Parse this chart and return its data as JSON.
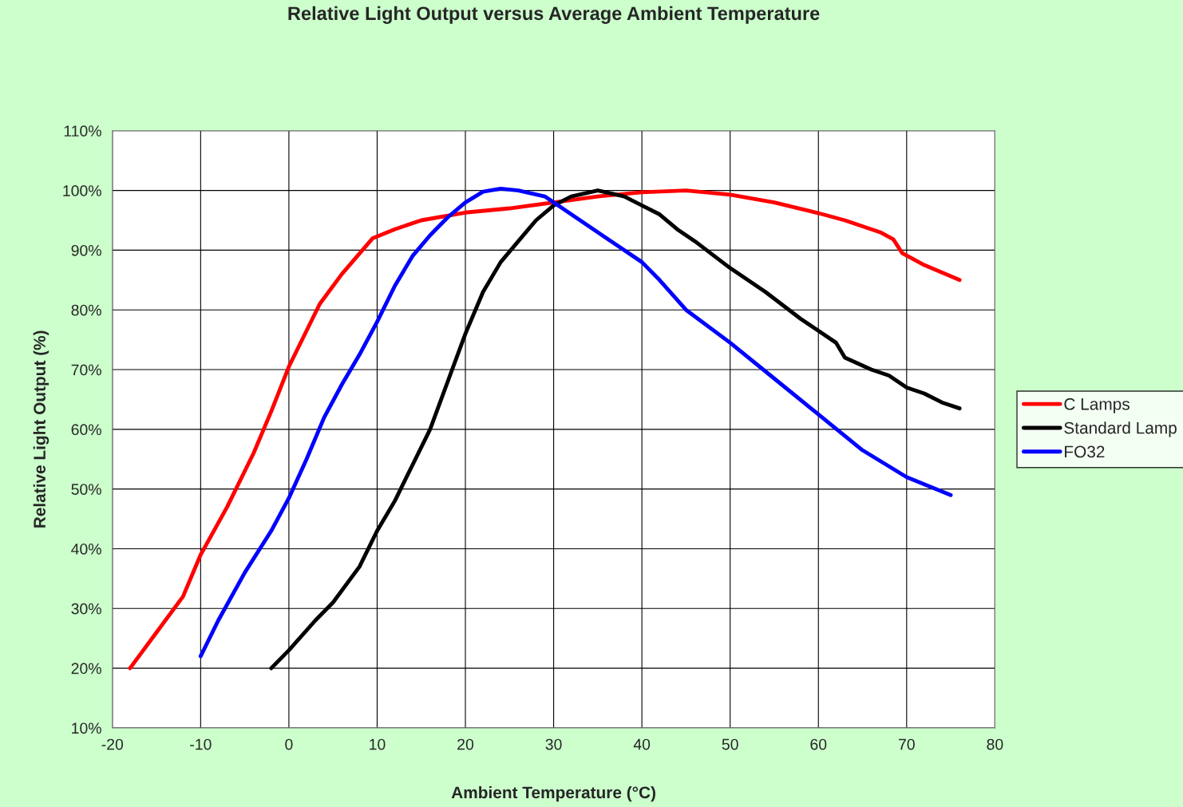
{
  "chart_data": {
    "type": "line",
    "title": "Relative Light Output versus Average Ambient Temperature",
    "xlabel": "Ambient Temperature (°C)",
    "ylabel": "Relative Light Output (%)",
    "xlim": [
      -20,
      80
    ],
    "xticks": [
      -20,
      -10,
      0,
      10,
      20,
      30,
      40,
      50,
      60,
      70,
      80
    ],
    "ylim": [
      10,
      110
    ],
    "yticks": [
      {
        "value": 10,
        "label": "10%"
      },
      {
        "value": 20,
        "label": "20%"
      },
      {
        "value": 30,
        "label": "30%"
      },
      {
        "value": 40,
        "label": "40%"
      },
      {
        "value": 50,
        "label": "50%"
      },
      {
        "value": 60,
        "label": "60%"
      },
      {
        "value": 70,
        "label": "70%"
      },
      {
        "value": 80,
        "label": "80%"
      },
      {
        "value": 90,
        "label": "90%"
      },
      {
        "value": 100,
        "label": "100%"
      },
      {
        "value": 110,
        "label": "110%"
      }
    ],
    "grid": true,
    "legend": "right",
    "marker": "none",
    "line_style": "solid",
    "series": [
      {
        "name": "C Lamps",
        "color": "#ff0000",
        "x": [
          -18,
          -15,
          -12,
          -10,
          -7,
          -4,
          -2,
          0,
          3.5,
          6,
          9.5,
          12,
          15,
          20,
          25,
          30,
          35,
          40,
          45,
          50,
          55,
          60,
          63,
          67,
          68.5,
          69.5,
          72,
          76
        ],
        "values": [
          20,
          26,
          32,
          39,
          47,
          56,
          63,
          70.5,
          81,
          86,
          92,
          93.5,
          95,
          96.3,
          97,
          98,
          99,
          99.7,
          100,
          99.3,
          98,
          96.2,
          95,
          93,
          91.8,
          89.5,
          87.5,
          85
        ]
      },
      {
        "name": "Standard Lamp",
        "color": "#000000",
        "x": [
          -2,
          0,
          3,
          5,
          8,
          10,
          12,
          14,
          16,
          18,
          20,
          22,
          24,
          26,
          28,
          30,
          32,
          35,
          38,
          40,
          42,
          44,
          46,
          50,
          54,
          58,
          62,
          63,
          66,
          68,
          70,
          72,
          74,
          76
        ],
        "values": [
          20,
          23,
          28,
          31,
          37,
          43,
          48,
          54,
          60,
          68,
          76,
          83,
          88,
          91.5,
          95,
          97.5,
          99,
          100,
          99,
          97.5,
          96,
          93.5,
          91.5,
          87,
          83,
          78.5,
          74.5,
          72,
          70,
          69,
          67,
          66,
          64.5,
          63.5
        ]
      },
      {
        "name": "FO32",
        "color": "#0000ff",
        "x": [
          -10,
          -8,
          -5,
          -2,
          0,
          2,
          4,
          6,
          8,
          10,
          12,
          14,
          16,
          18,
          20,
          22,
          24,
          26,
          29,
          31,
          33,
          36,
          40,
          42,
          45,
          50,
          55,
          60,
          65,
          70,
          75
        ],
        "values": [
          22,
          28,
          36,
          43,
          48.5,
          55,
          62,
          67.5,
          72.5,
          78,
          84,
          89,
          92.5,
          95.5,
          98,
          99.8,
          100.3,
          100,
          99,
          97,
          95,
          92,
          88,
          85,
          80,
          74.5,
          68.5,
          62.5,
          56.5,
          52,
          49
        ]
      }
    ]
  }
}
